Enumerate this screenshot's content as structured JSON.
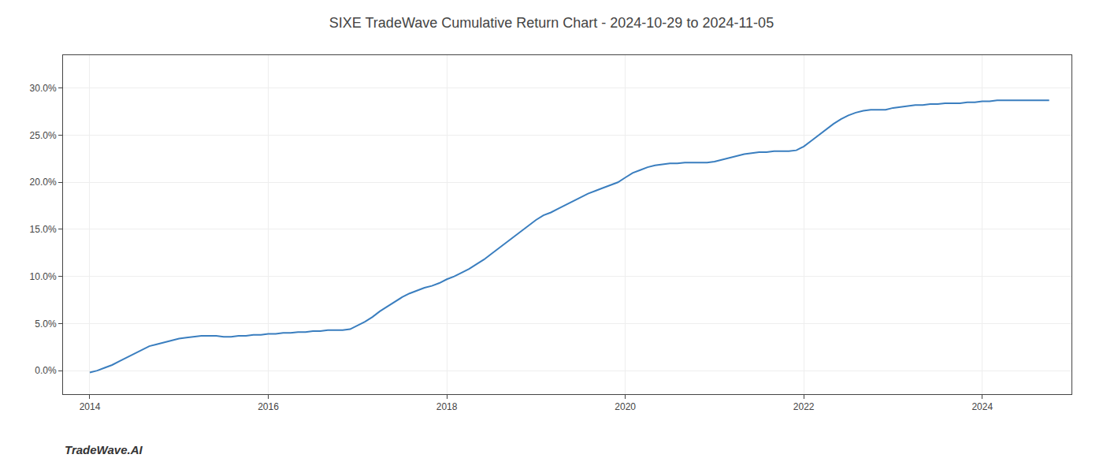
{
  "chart_data": {
    "type": "line",
    "title": "SIXE TradeWave Cumulative Return Chart - 2024-10-29 to 2024-11-05",
    "annotations": [
      "TradeWave.AI"
    ],
    "color": "#3a7ebf",
    "grid": true,
    "x": [
      2014.0,
      2014.083,
      2014.167,
      2014.25,
      2014.333,
      2014.417,
      2014.5,
      2014.583,
      2014.667,
      2014.75,
      2014.833,
      2014.917,
      2015.0,
      2015.083,
      2015.167,
      2015.25,
      2015.333,
      2015.417,
      2015.5,
      2015.583,
      2015.667,
      2015.75,
      2015.833,
      2015.917,
      2016.0,
      2016.083,
      2016.167,
      2016.25,
      2016.333,
      2016.417,
      2016.5,
      2016.583,
      2016.667,
      2016.75,
      2016.833,
      2016.917,
      2017.0,
      2017.083,
      2017.167,
      2017.25,
      2017.333,
      2017.417,
      2017.5,
      2017.583,
      2017.667,
      2017.75,
      2017.833,
      2017.917,
      2018.0,
      2018.083,
      2018.167,
      2018.25,
      2018.333,
      2018.417,
      2018.5,
      2018.583,
      2018.667,
      2018.75,
      2018.833,
      2018.917,
      2019.0,
      2019.083,
      2019.167,
      2019.25,
      2019.333,
      2019.417,
      2019.5,
      2019.583,
      2019.667,
      2019.75,
      2019.833,
      2019.917,
      2020.0,
      2020.083,
      2020.167,
      2020.25,
      2020.333,
      2020.417,
      2020.5,
      2020.583,
      2020.667,
      2020.75,
      2020.833,
      2020.917,
      2021.0,
      2021.083,
      2021.167,
      2021.25,
      2021.333,
      2021.417,
      2021.5,
      2021.583,
      2021.667,
      2021.75,
      2021.833,
      2021.917,
      2022.0,
      2022.083,
      2022.167,
      2022.25,
      2022.333,
      2022.417,
      2022.5,
      2022.583,
      2022.667,
      2022.75,
      2022.833,
      2022.917,
      2023.0,
      2023.083,
      2023.167,
      2023.25,
      2023.333,
      2023.417,
      2023.5,
      2023.583,
      2023.667,
      2023.75,
      2023.833,
      2023.917,
      2024.0,
      2024.083,
      2024.167,
      2024.25,
      2024.333,
      2024.417,
      2024.5,
      2024.583,
      2024.667,
      2024.75
    ],
    "values": [
      -0.002,
      0.0,
      0.003,
      0.006,
      0.01,
      0.014,
      0.018,
      0.022,
      0.026,
      0.028,
      0.03,
      0.032,
      0.034,
      0.035,
      0.036,
      0.037,
      0.037,
      0.037,
      0.036,
      0.036,
      0.037,
      0.037,
      0.038,
      0.038,
      0.039,
      0.039,
      0.04,
      0.04,
      0.041,
      0.041,
      0.042,
      0.042,
      0.043,
      0.043,
      0.043,
      0.044,
      0.048,
      0.052,
      0.057,
      0.063,
      0.068,
      0.073,
      0.078,
      0.082,
      0.085,
      0.088,
      0.09,
      0.093,
      0.097,
      0.1,
      0.104,
      0.108,
      0.113,
      0.118,
      0.124,
      0.13,
      0.136,
      0.142,
      0.148,
      0.154,
      0.16,
      0.165,
      0.168,
      0.172,
      0.176,
      0.18,
      0.184,
      0.188,
      0.191,
      0.194,
      0.197,
      0.2,
      0.205,
      0.21,
      0.213,
      0.216,
      0.218,
      0.219,
      0.22,
      0.22,
      0.221,
      0.221,
      0.221,
      0.221,
      0.222,
      0.224,
      0.226,
      0.228,
      0.23,
      0.231,
      0.232,
      0.232,
      0.233,
      0.233,
      0.233,
      0.234,
      0.238,
      0.244,
      0.25,
      0.256,
      0.262,
      0.267,
      0.271,
      0.274,
      0.276,
      0.277,
      0.277,
      0.277,
      0.279,
      0.28,
      0.281,
      0.282,
      0.282,
      0.283,
      0.283,
      0.284,
      0.284,
      0.284,
      0.285,
      0.285,
      0.286,
      0.286,
      0.287,
      0.287,
      0.287,
      0.287,
      0.287,
      0.287,
      0.287,
      0.287
    ],
    "xlim": [
      2013.7,
      2025.0
    ],
    "ylim": [
      -0.025,
      0.335
    ],
    "xticks": [
      2014,
      2016,
      2018,
      2020,
      2022,
      2024
    ],
    "yticks": [
      {
        "value": 0.0,
        "label": "0.0%"
      },
      {
        "value": 0.05,
        "label": "5.0%"
      },
      {
        "value": 0.1,
        "label": "10.0%"
      },
      {
        "value": 0.15,
        "label": "15.0%"
      },
      {
        "value": 0.2,
        "label": "20.0%"
      },
      {
        "value": 0.25,
        "label": "25.0%"
      },
      {
        "value": 0.3,
        "label": "30.0%"
      }
    ]
  }
}
